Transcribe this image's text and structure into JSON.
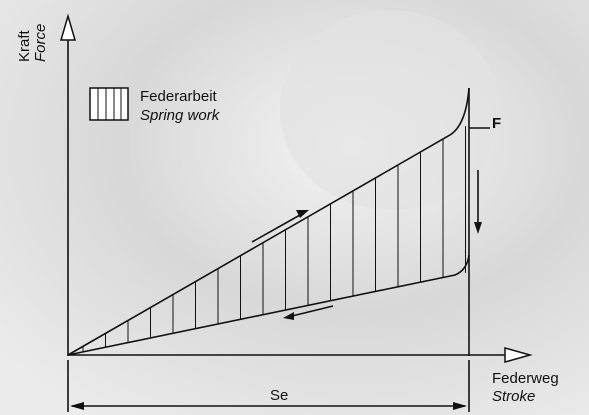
{
  "axes": {
    "y_label": "Kraft",
    "y_label_en": "Force",
    "x_label": "Federweg",
    "x_label_en": "Stroke"
  },
  "legend": {
    "label": "Federarbeit",
    "label_en": "Spring work"
  },
  "force_label": "F",
  "stroke_label": "Se"
}
